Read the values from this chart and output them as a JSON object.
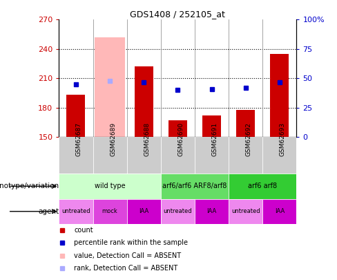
{
  "title": "GDS1408 / 252105_at",
  "samples": [
    "GSM62687",
    "GSM62689",
    "GSM62688",
    "GSM62690",
    "GSM62691",
    "GSM62692",
    "GSM62693"
  ],
  "bar_values": [
    193,
    null,
    222,
    167,
    172,
    178,
    235
  ],
  "bar_absent_value": 252,
  "bar_absent_index": 1,
  "percentile_values": [
    45,
    48,
    47,
    40,
    41,
    42,
    47
  ],
  "percentile_absent_index": 1,
  "percentile_absent_value": 48,
  "ylim_left": [
    150,
    270
  ],
  "ylim_right": [
    0,
    100
  ],
  "yticks_left": [
    150,
    180,
    210,
    240,
    270
  ],
  "yticks_right": [
    0,
    25,
    50,
    75,
    100
  ],
  "bar_color": "#cc0000",
  "bar_absent_color": "#ffb8b8",
  "percentile_color": "#0000cc",
  "percentile_absent_color": "#aaaaff",
  "grid_color": "#000000",
  "left_tick_color": "#cc0000",
  "right_tick_color": "#0000cc",
  "genotype_groups": [
    {
      "label": "wild type",
      "start": 0,
      "end": 3,
      "color": "#ccffcc"
    },
    {
      "label": "arf6/arf6 ARF8/arf8",
      "start": 3,
      "end": 5,
      "color": "#66dd66"
    },
    {
      "label": "arf6 arf8",
      "start": 5,
      "end": 7,
      "color": "#33cc33"
    }
  ],
  "agent_groups": [
    {
      "label": "untreated",
      "start": 0,
      "end": 1,
      "color": "#ee88ee"
    },
    {
      "label": "mock",
      "start": 1,
      "end": 2,
      "color": "#dd44dd"
    },
    {
      "label": "IAA",
      "start": 2,
      "end": 3,
      "color": "#cc00cc"
    },
    {
      "label": "untreated",
      "start": 3,
      "end": 4,
      "color": "#ee88ee"
    },
    {
      "label": "IAA",
      "start": 4,
      "end": 5,
      "color": "#cc00cc"
    },
    {
      "label": "untreated",
      "start": 5,
      "end": 6,
      "color": "#ee88ee"
    },
    {
      "label": "IAA",
      "start": 6,
      "end": 7,
      "color": "#cc00cc"
    }
  ],
  "legend_items": [
    {
      "label": "count",
      "color": "#cc0000"
    },
    {
      "label": "percentile rank within the sample",
      "color": "#0000cc"
    },
    {
      "label": "value, Detection Call = ABSENT",
      "color": "#ffb8b8"
    },
    {
      "label": "rank, Detection Call = ABSENT",
      "color": "#aaaaff"
    }
  ],
  "genotype_label": "genotype/variation",
  "agent_label": "agent",
  "bar_width": 0.55,
  "absent_bar_width": 0.9
}
